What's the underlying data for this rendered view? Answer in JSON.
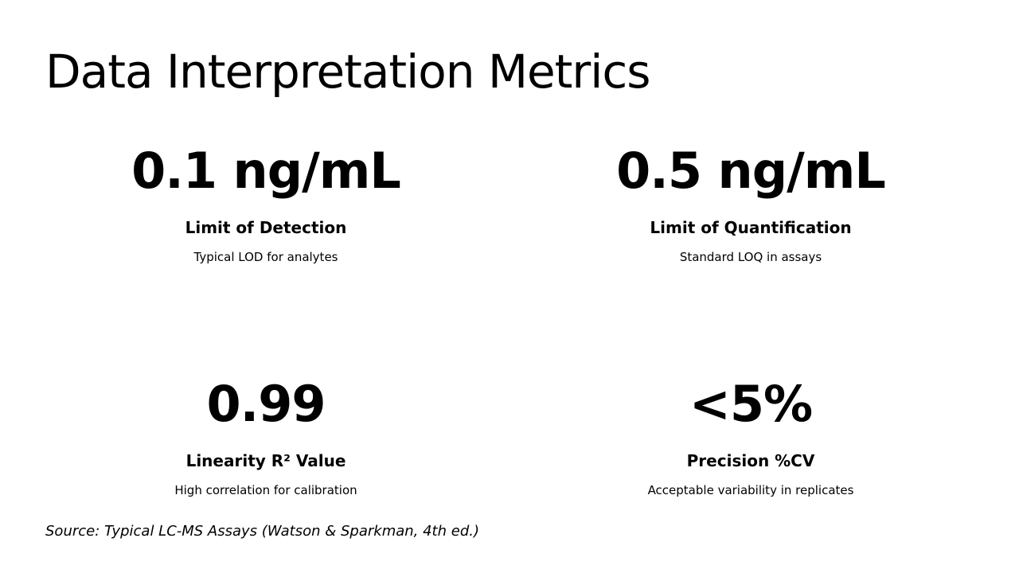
{
  "header": {
    "title": "Data Interpretation Metrics"
  },
  "metrics": [
    {
      "value": "0.1 ng/mL",
      "label": "Limit of Detection",
      "description": "Typical LOD for analytes"
    },
    {
      "value": "0.5 ng/mL",
      "label": "Limit of Quantification",
      "description": "Standard LOQ in assays"
    },
    {
      "value": "0.99",
      "label": "Linearity R² Value",
      "description": "High correlation for calibration"
    },
    {
      "value": "<5%",
      "label": "Precision %CV",
      "description": "Acceptable variability in replicates"
    }
  ],
  "footer": {
    "source": "Source: Typical LC-MS Assays (Watson & Sparkman, 4th ed.)"
  }
}
